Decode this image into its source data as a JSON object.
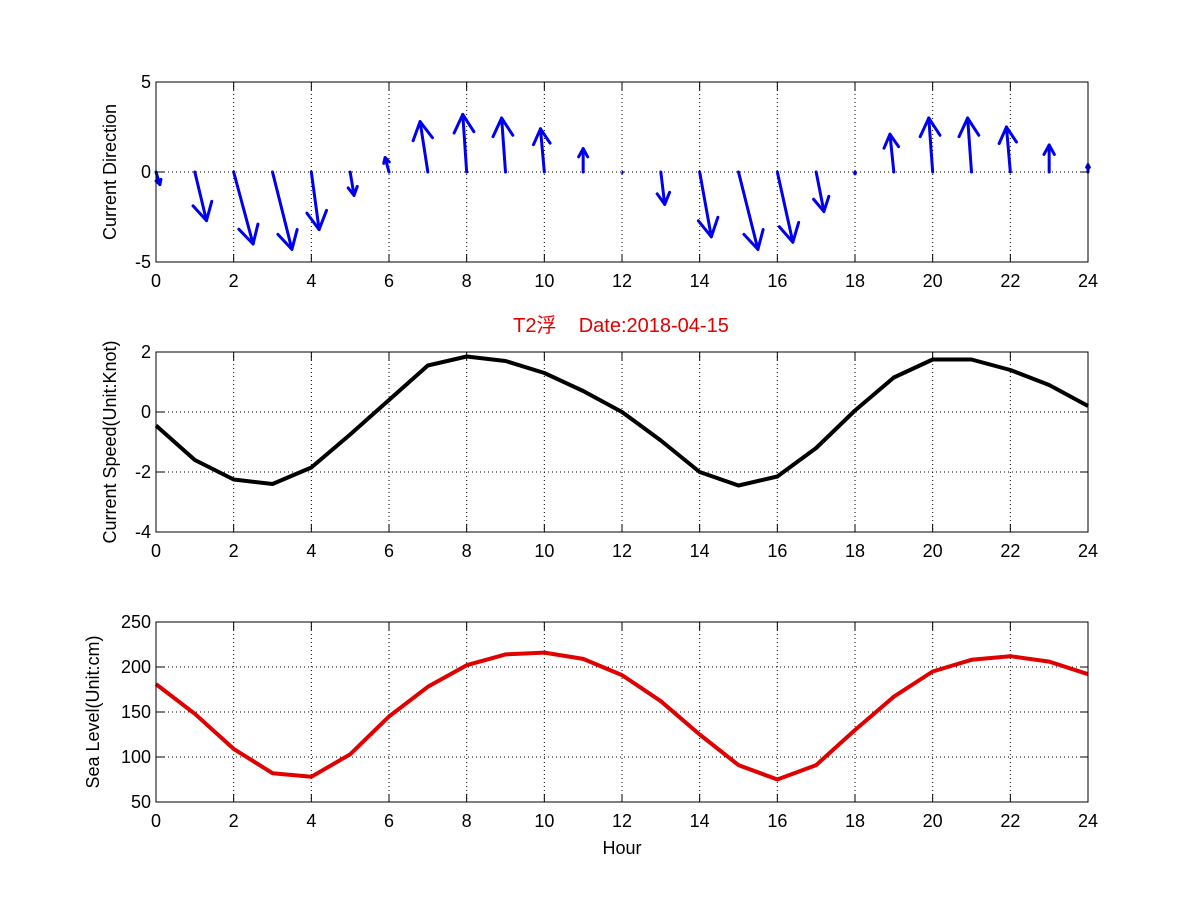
{
  "figure": {
    "title": "T2浮    Date:2018-04-15",
    "title_color": "#e00000"
  },
  "chart_data": [
    {
      "type": "quiver",
      "title": "",
      "xlabel": "",
      "ylabel": "Current Direction",
      "xlim": [
        0,
        24
      ],
      "ylim": [
        -5,
        5
      ],
      "xticks": [
        0,
        2,
        4,
        6,
        8,
        10,
        12,
        14,
        16,
        18,
        20,
        22,
        24
      ],
      "yticks": [
        -5,
        0,
        5
      ],
      "grid": true,
      "color": "#0000ee",
      "vectors": [
        {
          "x": 0,
          "u": 0.1,
          "v": -0.7
        },
        {
          "x": 1,
          "u": 0.3,
          "v": -2.7
        },
        {
          "x": 2,
          "u": 0.5,
          "v": -4.0
        },
        {
          "x": 3,
          "u": 0.5,
          "v": -4.3
        },
        {
          "x": 4,
          "u": 0.2,
          "v": -3.2
        },
        {
          "x": 5,
          "u": 0.1,
          "v": -1.3
        },
        {
          "x": 6,
          "u": -0.1,
          "v": 0.8
        },
        {
          "x": 7,
          "u": -0.2,
          "v": 2.8
        },
        {
          "x": 8,
          "u": -0.1,
          "v": 3.2
        },
        {
          "x": 9,
          "u": -0.1,
          "v": 3.0
        },
        {
          "x": 10,
          "u": -0.1,
          "v": 2.4
        },
        {
          "x": 11,
          "u": 0.0,
          "v": 1.3
        },
        {
          "x": 12,
          "u": 0.0,
          "v": 0.0
        },
        {
          "x": 13,
          "u": 0.1,
          "v": -1.8
        },
        {
          "x": 14,
          "u": 0.3,
          "v": -3.6
        },
        {
          "x": 15,
          "u": 0.5,
          "v": -4.3
        },
        {
          "x": 16,
          "u": 0.4,
          "v": -3.9
        },
        {
          "x": 17,
          "u": 0.2,
          "v": -2.2
        },
        {
          "x": 18,
          "u": 0.0,
          "v": -0.1
        },
        {
          "x": 19,
          "u": -0.1,
          "v": 2.1
        },
        {
          "x": 20,
          "u": -0.1,
          "v": 3.0
        },
        {
          "x": 21,
          "u": -0.1,
          "v": 3.0
        },
        {
          "x": 22,
          "u": -0.1,
          "v": 2.5
        },
        {
          "x": 23,
          "u": 0.0,
          "v": 1.5
        },
        {
          "x": 24,
          "u": 0.0,
          "v": 0.4
        }
      ]
    },
    {
      "type": "line",
      "title": "",
      "xlabel": "",
      "ylabel": "Current Speed(Unit:Knot)",
      "xlim": [
        0,
        24
      ],
      "ylim": [
        -4,
        2
      ],
      "xticks": [
        0,
        2,
        4,
        6,
        8,
        10,
        12,
        14,
        16,
        18,
        20,
        22,
        24
      ],
      "yticks": [
        -4,
        -2,
        0,
        2
      ],
      "grid": true,
      "color": "#000000",
      "x": [
        0,
        1,
        2,
        3,
        4,
        5,
        6,
        7,
        8,
        9,
        10,
        11,
        12,
        13,
        14,
        15,
        16,
        17,
        18,
        19,
        20,
        21,
        22,
        23,
        24
      ],
      "y": [
        -0.45,
        -1.6,
        -2.25,
        -2.4,
        -1.85,
        -0.75,
        0.4,
        1.55,
        1.85,
        1.7,
        1.3,
        0.7,
        0.0,
        -0.95,
        -2.0,
        -2.45,
        -2.15,
        -1.2,
        0.05,
        1.15,
        1.75,
        1.75,
        1.4,
        0.9,
        0.2
      ]
    },
    {
      "type": "line",
      "title": "",
      "xlabel": "Hour",
      "ylabel": "Sea Level(Unit:cm)",
      "xlim": [
        0,
        24
      ],
      "ylim": [
        50,
        250
      ],
      "xticks": [
        0,
        2,
        4,
        6,
        8,
        10,
        12,
        14,
        16,
        18,
        20,
        22,
        24
      ],
      "yticks": [
        50,
        100,
        150,
        200,
        250
      ],
      "grid": true,
      "color": "#e00000",
      "x": [
        0,
        1,
        2,
        3,
        4,
        5,
        6,
        7,
        8,
        9,
        10,
        11,
        12,
        13,
        14,
        15,
        16,
        17,
        18,
        19,
        20,
        21,
        22,
        23,
        24
      ],
      "y": [
        181,
        148,
        109,
        82,
        78,
        103,
        145,
        178,
        202,
        214,
        216,
        209,
        191,
        162,
        125,
        91,
        75,
        91,
        130,
        167,
        195,
        208,
        212,
        206,
        192
      ]
    }
  ]
}
